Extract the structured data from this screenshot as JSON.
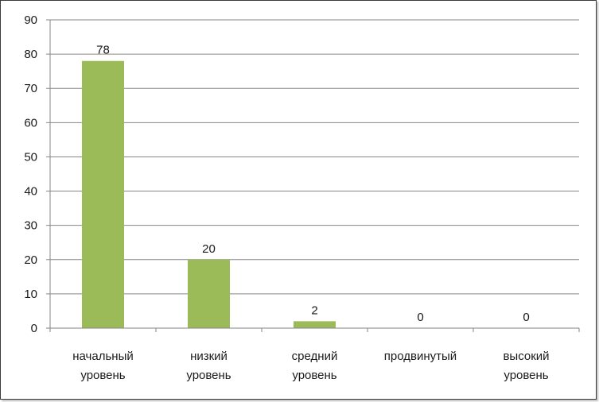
{
  "chart_data": {
    "type": "bar",
    "categories": [
      [
        "начальный",
        "уровень"
      ],
      [
        "низкий",
        "уровень"
      ],
      [
        "средний",
        "уровень"
      ],
      [
        "продвинутый"
      ],
      [
        "высокий",
        "уровень"
      ]
    ],
    "values": [
      78,
      20,
      2,
      0,
      0
    ],
    "data_labels": [
      "78",
      "20",
      "2",
      "0",
      "0"
    ],
    "title": "",
    "xlabel": "",
    "ylabel": "",
    "ylim": [
      0,
      90
    ],
    "yticks": [
      0,
      10,
      20,
      30,
      40,
      50,
      60,
      70,
      80,
      90
    ],
    "grid": true,
    "legend": "none",
    "colors": {
      "bar": "#9bbb59",
      "grid": "#868686",
      "axis": "#868686",
      "text": "#1a1a1a"
    }
  }
}
